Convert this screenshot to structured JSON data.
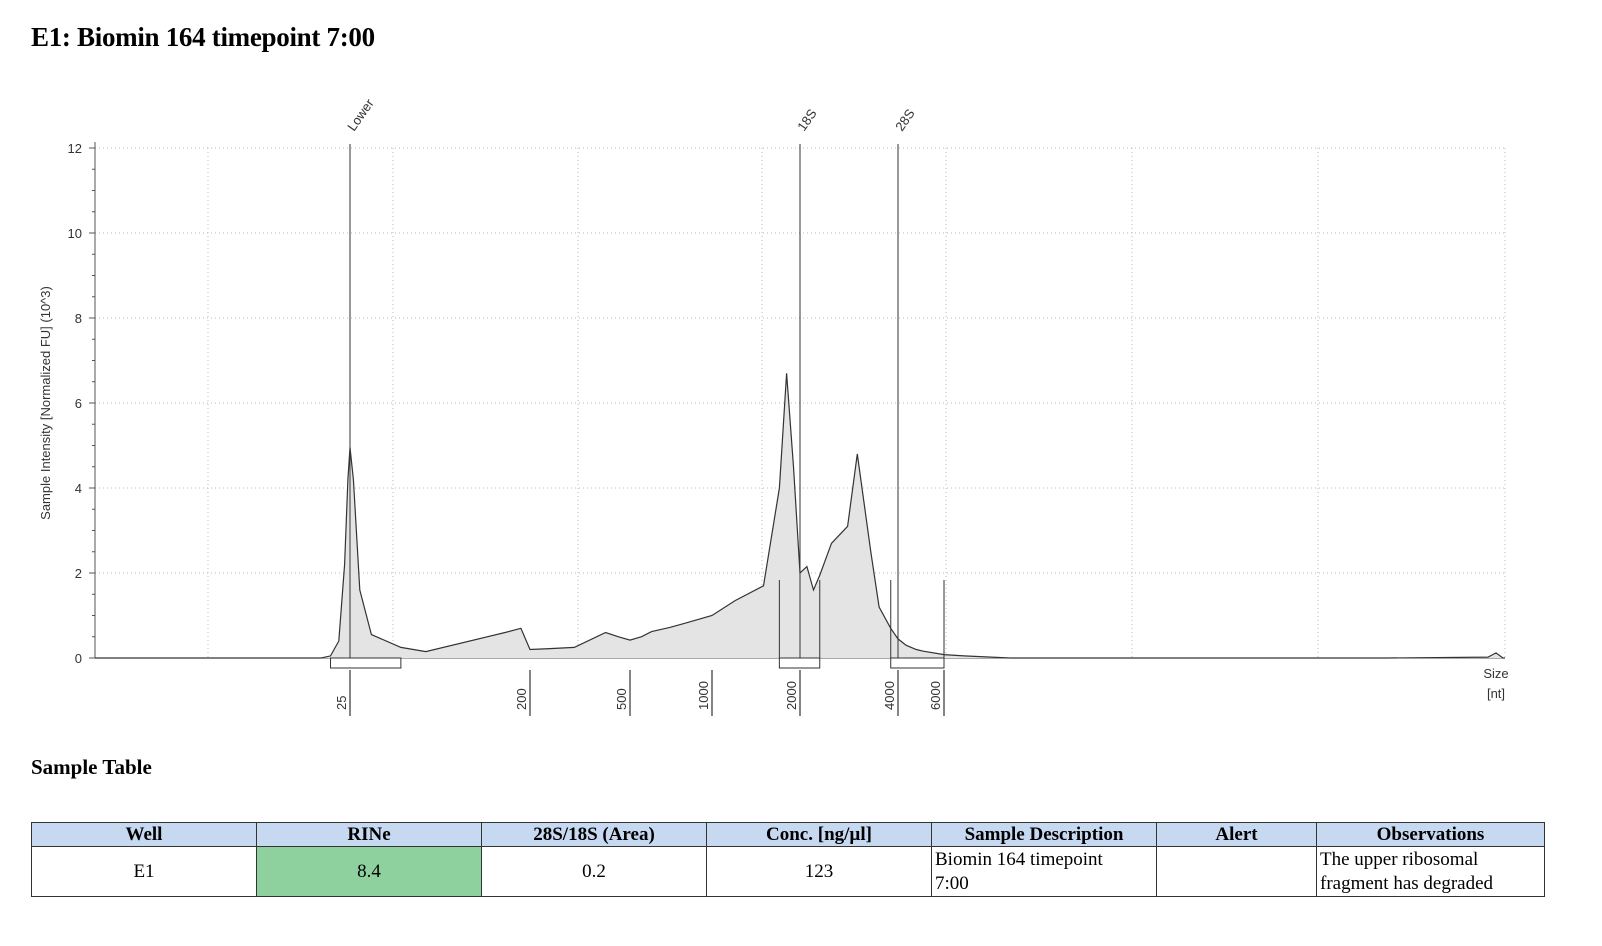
{
  "title": "E1: Biomin 164 timepoint 7:00",
  "chart_data": {
    "type": "line",
    "ylabel": "Sample Intensity [Normalized FU] (10^3)",
    "xlabel_line1": "Size",
    "xlabel_line2": "[nt]",
    "ylim": [
      0,
      12
    ],
    "y_ticks": [
      "0",
      "2",
      "4",
      "6",
      "8",
      "10",
      "12"
    ],
    "x_ticks": [
      "25",
      "200",
      "500",
      "1000",
      "2000",
      "4000",
      "6000"
    ],
    "peak_markers": [
      {
        "label": "Lower",
        "x": 25
      },
      {
        "label": "18S",
        "x": 2000
      },
      {
        "label": "28S",
        "x": 4000
      }
    ],
    "grid": "dotted",
    "fill_color": "#e4e4e4",
    "line_color": "#333333",
    "series": [
      {
        "x": [
          25,
          100,
          150,
          180,
          200,
          240,
          300,
          400,
          450,
          500,
          550,
          600,
          700,
          800,
          1000,
          1200,
          1500,
          1700,
          1800,
          1900,
          2000,
          2100,
          2200,
          2300,
          2500,
          2800,
          3000,
          3300,
          3500,
          3800,
          4000,
          4300,
          4700,
          5000,
          6000,
          7000,
          10000
        ],
        "y": [
          4.95,
          0.9,
          0.6,
          0.7,
          0.2,
          0.22,
          0.25,
          0.6,
          0.5,
          0.42,
          0.5,
          0.62,
          0.72,
          0.82,
          1.0,
          1.35,
          1.7,
          4.0,
          6.7,
          4.5,
          2.0,
          2.15,
          1.6,
          1.95,
          2.7,
          3.1,
          4.8,
          2.5,
          1.2,
          0.7,
          0.45,
          0.3,
          0.2,
          0.16,
          0.08,
          0.05,
          0.0
        ]
      }
    ]
  },
  "table": {
    "heading": "Sample Table",
    "headers": [
      "Well",
      "RINe",
      "28S/18S (Area)",
      "Conc. [ng/µl]",
      "Sample Description",
      "Alert",
      "Observations"
    ],
    "row": {
      "well": "E1",
      "rine": "8.4",
      "ratio": "0.2",
      "conc": "123",
      "description_line1": "Biomin 164 timepoint",
      "description_line2": "7:00",
      "alert": "",
      "observations_line1": "The upper ribosomal",
      "observations_line2": "fragment has degraded"
    },
    "rine_color": "#8fd19e",
    "header_color": "#c6d9f1"
  }
}
